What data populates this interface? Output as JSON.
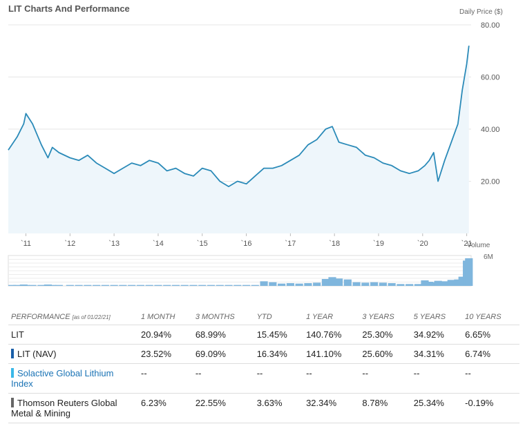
{
  "header": {
    "title": "LIT Charts And Performance",
    "price_label": "Daily Price ($)",
    "volume_label": "Volume",
    "volume_max_label": "6M"
  },
  "chart_data": {
    "type": "area",
    "ylabel": "Daily Price ($)",
    "ylim": [
      0,
      80
    ],
    "yticks": [
      "80.00",
      "60.00",
      "40.00",
      "20.00"
    ],
    "xticks": [
      "`11",
      "`12",
      "`13",
      "`14",
      "`15",
      "`16",
      "`17",
      "`18",
      "`19",
      "`20",
      "`21"
    ],
    "x": [
      2010.6,
      2010.8,
      2010.95,
      2011.0,
      2011.15,
      2011.35,
      2011.5,
      2011.6,
      2011.75,
      2012.0,
      2012.2,
      2012.4,
      2012.6,
      2012.8,
      2013.0,
      2013.2,
      2013.4,
      2013.6,
      2013.8,
      2014.0,
      2014.2,
      2014.4,
      2014.6,
      2014.8,
      2015.0,
      2015.2,
      2015.4,
      2015.6,
      2015.8,
      2016.0,
      2016.2,
      2016.4,
      2016.6,
      2016.8,
      2017.0,
      2017.2,
      2017.4,
      2017.6,
      2017.8,
      2017.95,
      2018.1,
      2018.3,
      2018.5,
      2018.7,
      2018.9,
      2019.1,
      2019.3,
      2019.5,
      2019.7,
      2019.9,
      2020.05,
      2020.15,
      2020.25,
      2020.35,
      2020.5,
      2020.65,
      2020.8,
      2020.9,
      2021.0,
      2021.05
    ],
    "values": [
      32,
      37,
      42,
      46,
      42,
      34,
      29,
      33,
      31,
      29,
      28,
      30,
      27,
      25,
      23,
      25,
      27,
      26,
      28,
      27,
      24,
      25,
      23,
      22,
      25,
      24,
      20,
      18,
      20,
      19,
      22,
      25,
      25,
      26,
      28,
      30,
      34,
      36,
      40,
      41,
      35,
      34,
      33,
      30,
      29,
      27,
      26,
      24,
      23,
      24,
      26,
      28,
      31,
      20,
      28,
      35,
      42,
      55,
      65,
      72
    ],
    "volume": [
      0.2,
      0.2,
      0.3,
      0.2,
      0.2,
      0.2,
      0.3,
      0.2,
      0.2,
      0.2,
      0.2,
      0.2,
      0.2,
      0.2,
      0.2,
      0.2,
      0.2,
      0.2,
      0.2,
      0.2,
      0.2,
      0.2,
      0.2,
      0.2,
      0.2,
      0.2,
      0.2,
      0.2,
      0.2,
      0.2,
      0.2,
      1.0,
      0.8,
      0.5,
      0.6,
      0.5,
      0.6,
      0.7,
      1.5,
      1.9,
      1.6,
      1.4,
      0.8,
      0.7,
      0.8,
      0.7,
      0.6,
      0.4,
      0.4,
      0.4,
      1.2,
      0.9,
      0.8,
      1.1,
      1.0,
      1.3,
      1.4,
      2.0,
      5.5,
      6.0
    ]
  },
  "performance": {
    "header_label": "PERFORMANCE",
    "as_of": "[as of 01/22/21]",
    "columns": [
      "1 MONTH",
      "3 MONTHS",
      "YTD",
      "1 YEAR",
      "3 YEARS",
      "5 YEARS",
      "10 YEARS"
    ],
    "rows": [
      {
        "name": "LIT",
        "color": "",
        "values": [
          "20.94%",
          "68.99%",
          "15.45%",
          "140.76%",
          "25.30%",
          "34.92%",
          "6.65%"
        ]
      },
      {
        "name": "LIT (NAV)",
        "color": "#1a5fa8",
        "values": [
          "23.52%",
          "69.09%",
          "16.34%",
          "141.10%",
          "25.60%",
          "34.31%",
          "6.74%"
        ]
      },
      {
        "name": "Solactive Global Lithium Index",
        "color": "#3ab8e8",
        "values": [
          "--",
          "--",
          "--",
          "--",
          "--",
          "--",
          "--"
        ]
      },
      {
        "name": "Thomson Reuters Global Metal & Mining",
        "color": "#666666",
        "values": [
          "6.23%",
          "22.55%",
          "3.63%",
          "32.34%",
          "8.78%",
          "25.34%",
          "-0.19%"
        ]
      }
    ]
  },
  "colors": {
    "line": "#2a8ab8",
    "area": "#eef6fb",
    "volume": "#7fb6dd"
  }
}
